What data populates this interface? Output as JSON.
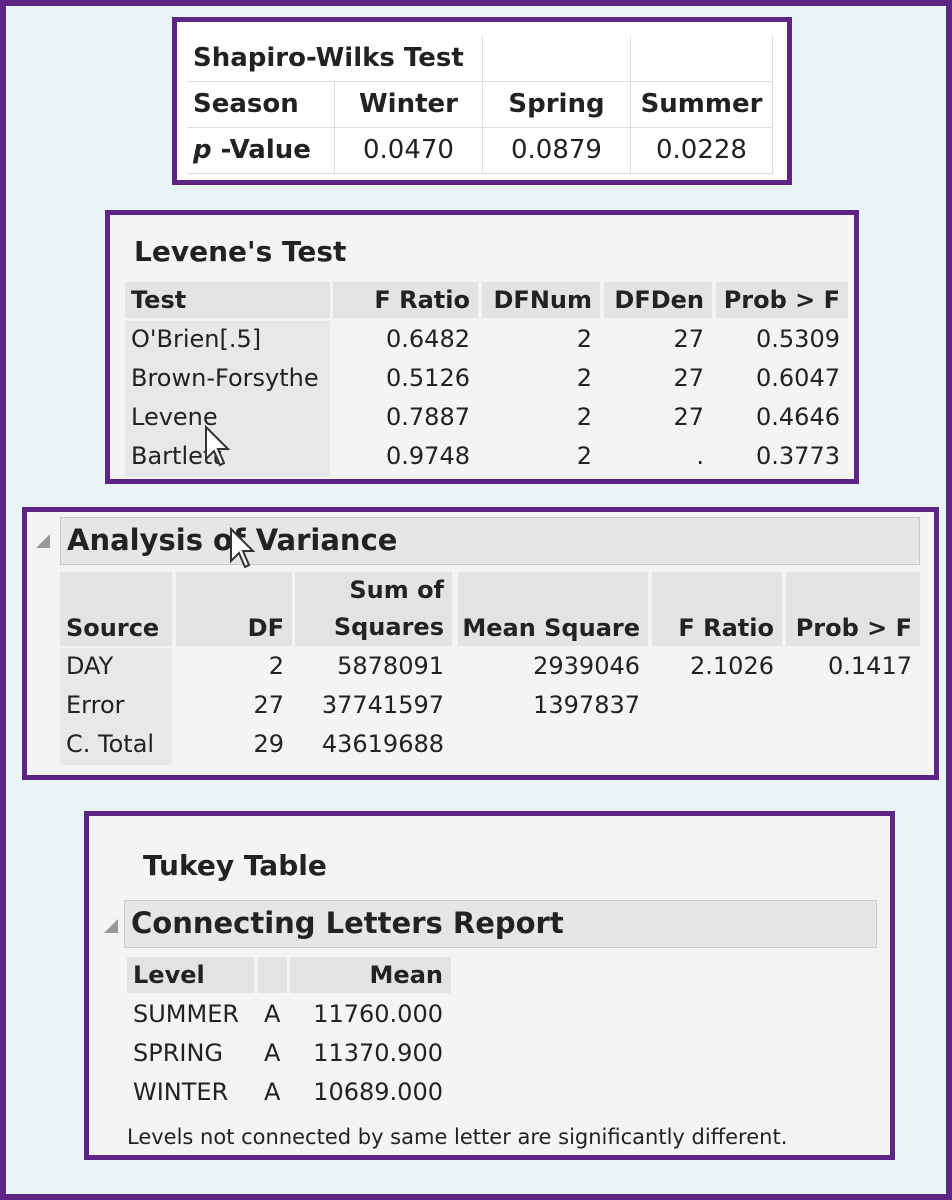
{
  "shapiro": {
    "title": "Shapiro-Wilks Test",
    "header": [
      "Season",
      "Winter",
      "Spring",
      "Summer"
    ],
    "row_label_italic": "p",
    "row_label_rest": " -Value",
    "values": [
      "0.0470",
      "0.0879",
      "0.0228"
    ]
  },
  "levene": {
    "title": "Levene's Test",
    "columns": [
      "Test",
      "F Ratio",
      "DFNum",
      "DFDen",
      "Prob > F"
    ],
    "rows": [
      [
        "O'Brien[.5]",
        "0.6482",
        "2",
        "27",
        "0.5309"
      ],
      [
        "Brown-Forsythe",
        "0.5126",
        "2",
        "27",
        "0.6047"
      ],
      [
        "Levene",
        "0.7887",
        "2",
        "27",
        "0.4646"
      ],
      [
        "Bartlett",
        "0.9748",
        "2",
        ".",
        "0.3773"
      ]
    ]
  },
  "anova": {
    "title": "Analysis of Variance",
    "columns": [
      "Source",
      "DF",
      "Sum of Squares",
      "Mean Square",
      "F Ratio",
      "Prob > F"
    ],
    "col2_line1": "Sum of",
    "col2_line2": "Squares",
    "rows": [
      [
        "DAY",
        "2",
        "5878091",
        "2939046",
        "2.1026",
        "0.1417"
      ],
      [
        "Error",
        "27",
        "37741597",
        "1397837",
        "",
        ""
      ],
      [
        "C. Total",
        "29",
        "43619688",
        "",
        "",
        ""
      ]
    ]
  },
  "tukey": {
    "title": "Tukey Table",
    "report_title": "Connecting Letters Report",
    "columns": [
      "Level",
      "",
      "Mean"
    ],
    "rows": [
      [
        "SUMMER",
        "A",
        "11760.000"
      ],
      [
        "SPRING",
        "A",
        "11370.900"
      ],
      [
        "WINTER",
        "A",
        "10689.000"
      ]
    ],
    "footnote": "Levels not connected by same letter are significantly different."
  },
  "colors": {
    "border": "#5e2486",
    "background": "#e8f4f6"
  },
  "icons": [
    "disclosure-triangle-icon",
    "mouse-cursor-icon"
  ]
}
